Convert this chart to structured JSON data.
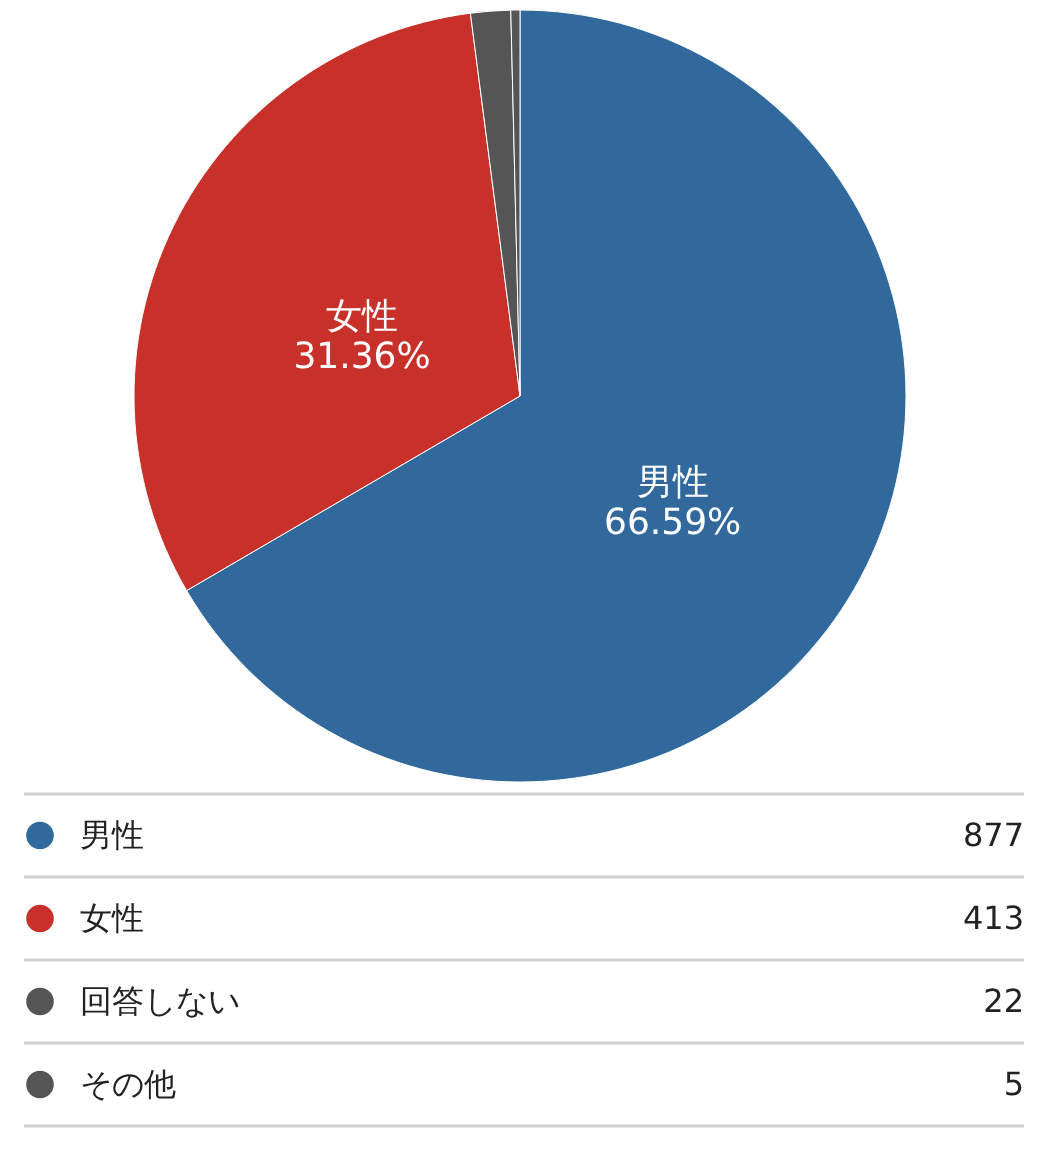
{
  "chart_data": {
    "type": "pie",
    "categories": [
      "男性",
      "女性",
      "回答しない",
      "その他"
    ],
    "values": [
      877,
      413,
      22,
      5
    ],
    "colors": [
      "#31699c",
      "#c8302a",
      "#555555",
      "#555555"
    ],
    "value_labels": [
      "877",
      "413",
      "22",
      "5"
    ],
    "annotations": [
      {
        "text": "66.59%",
        "x": "男性"
      },
      {
        "text": "31.36%",
        "x": "女性"
      }
    ],
    "legend": "bottom"
  }
}
